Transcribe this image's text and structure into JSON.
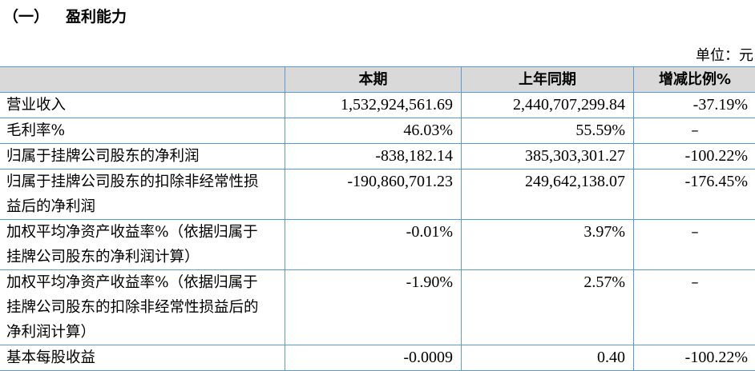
{
  "section": {
    "number": "（一）",
    "title": "盈利能力"
  },
  "unit": "单位：元",
  "table": {
    "headers": [
      "",
      "本期",
      "上年同期",
      "增减比例%"
    ],
    "rows": [
      {
        "label": "营业收入",
        "current": "1,532,924,561.69",
        "prior": "2,440,707,299.84",
        "change": "-37.19%"
      },
      {
        "label": "毛利率%",
        "current": "46.03%",
        "prior": "55.59%",
        "change": "–"
      },
      {
        "label": "归属于挂牌公司股东的净利润",
        "current": "-838,182.14",
        "prior": "385,303,301.27",
        "change": "-100.22%"
      },
      {
        "label": "归属于挂牌公司股东的扣除非经常性损益后的净利润",
        "current": "-190,860,701.23",
        "prior": "249,642,138.07",
        "change": "-176.45%"
      },
      {
        "label": "加权平均净资产收益率%（依据归属于挂牌公司股东的净利润计算）",
        "current": "-0.01%",
        "prior": "3.97%",
        "change": "–"
      },
      {
        "label": "加权平均净资产收益率%（依据归属于挂牌公司股东的扣除非经常性损益后的净利润计算）",
        "current": "-1.90%",
        "prior": "2.57%",
        "change": "–"
      },
      {
        "label": "基本每股收益",
        "current": "-0.0009",
        "prior": "0.40",
        "change": "-100.22%"
      }
    ]
  }
}
